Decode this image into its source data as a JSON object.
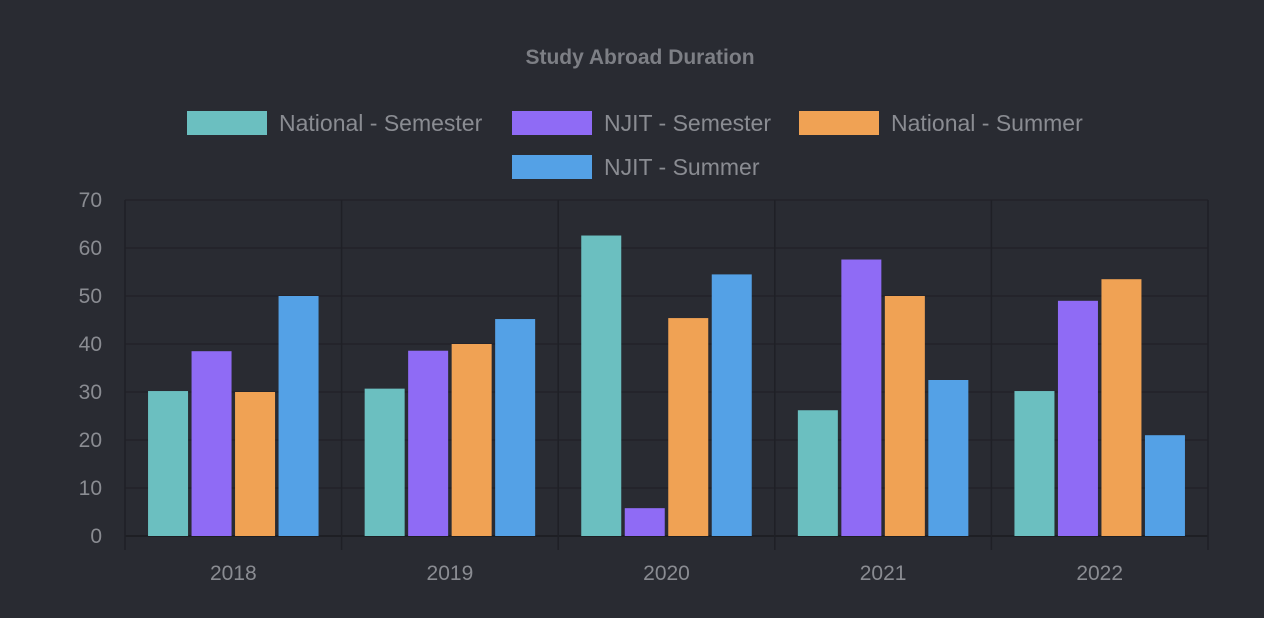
{
  "chart_data": {
    "type": "bar",
    "title": "Study Abroad Duration",
    "xlabel": "",
    "ylabel": "",
    "categories": [
      "2018",
      "2019",
      "2020",
      "2021",
      "2022"
    ],
    "ylim": [
      0,
      70
    ],
    "yticks": [
      0,
      10,
      20,
      30,
      40,
      50,
      60,
      70
    ],
    "grid": true,
    "legend_position": "top",
    "series": [
      {
        "name": "National - Semester",
        "color": "#6bbfc0",
        "values": [
          30.2,
          30.7,
          62.6,
          26.2,
          30.2
        ]
      },
      {
        "name": "NJIT - Semester",
        "color": "#8f6bf5",
        "values": [
          38.5,
          38.6,
          5.8,
          57.6,
          49.0
        ]
      },
      {
        "name": "National - Summer",
        "color": "#f0a254",
        "values": [
          30.0,
          40.0,
          45.4,
          50.0,
          53.5
        ]
      },
      {
        "name": "NJIT - Summer",
        "color": "#54a1e6",
        "values": [
          50.0,
          45.2,
          54.5,
          32.5,
          21.0
        ]
      }
    ]
  }
}
